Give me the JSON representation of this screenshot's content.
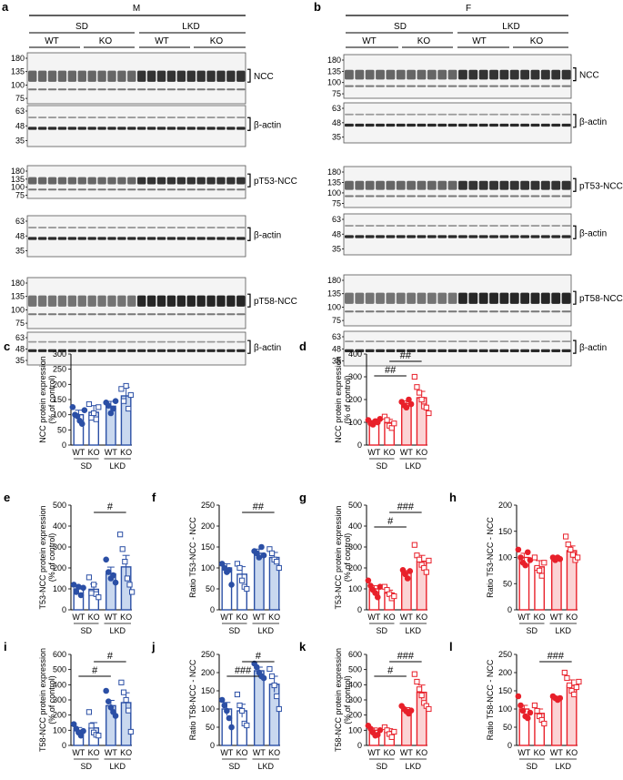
{
  "figure": {
    "panel_labels": [
      "a",
      "b",
      "c",
      "d",
      "e",
      "f",
      "g",
      "h",
      "i",
      "j",
      "k",
      "l"
    ],
    "sex_male": "M",
    "sex_female": "F",
    "diet_sd": "SD",
    "diet_lkd": "LKD",
    "wt": "WT",
    "ko": "KO"
  },
  "colors": {
    "male": "#2b4fa5",
    "male_fill": "#c9d8ef",
    "female": "#e8202a",
    "female_fill": "#fbd3d4"
  },
  "blots": [
    {
      "id": "a-ncc",
      "label": "NCC",
      "markers": [
        "180",
        "135",
        "100",
        "75"
      ],
      "style": "ncc"
    },
    {
      "id": "a-act1",
      "label": "β-actin",
      "markers": [
        "63",
        "48",
        "35"
      ],
      "style": "actin"
    },
    {
      "id": "a-pt53",
      "label": "pT53-NCC",
      "markers": [
        "180",
        "135",
        "100",
        "75"
      ],
      "style": "pt53"
    },
    {
      "id": "a-act2",
      "label": "β-actin",
      "markers": [
        "63",
        "48",
        "35"
      ],
      "style": "actin"
    },
    {
      "id": "a-pt58",
      "label": "pT58-NCC",
      "markers": [
        "180",
        "135",
        "100",
        "75"
      ],
      "style": "pt58"
    },
    {
      "id": "a-act3",
      "label": "β-actin",
      "markers": [
        "63",
        "48",
        "35"
      ],
      "style": "actin"
    },
    {
      "id": "b-ncc",
      "label": "NCC",
      "markers": [
        "180",
        "135",
        "100",
        "75"
      ],
      "style": "ncc"
    },
    {
      "id": "b-act1",
      "label": "β-actin",
      "markers": [
        "63",
        "48",
        "35"
      ],
      "style": "actin"
    },
    {
      "id": "b-pt53",
      "label": "pT53-NCC",
      "markers": [
        "180",
        "135",
        "100",
        "75"
      ],
      "style": "pt53"
    },
    {
      "id": "b-act2",
      "label": "β-actin",
      "markers": [
        "63",
        "48",
        "35"
      ],
      "style": "actin"
    },
    {
      "id": "b-pt58",
      "label": "pT58-NCC",
      "markers": [
        "180",
        "135",
        "100",
        "75"
      ],
      "style": "pt58"
    },
    {
      "id": "b-act3",
      "label": "β-actin",
      "markers": [
        "63",
        "48",
        "35"
      ],
      "style": "actin"
    }
  ],
  "chart_data": [
    {
      "panel": "c",
      "type": "bar",
      "sex": "M",
      "ylabel": "NCC protein expression\n(% of control)",
      "ylim": [
        0,
        300
      ],
      "yticks": [
        0,
        50,
        100,
        150,
        200,
        250,
        300
      ],
      "categories": [
        "WT",
        "KO",
        "WT",
        "KO"
      ],
      "groups": [
        "SD",
        "LKD"
      ],
      "means": [
        100,
        108,
        128,
        162
      ],
      "sem": [
        15,
        22,
        16,
        28
      ],
      "points": [
        [
          125,
          100,
          95,
          80,
          70,
          115
        ],
        [
          135,
          90,
          105,
          85,
          125
        ],
        [
          140,
          130,
          105,
          120,
          145
        ],
        [
          185,
          145,
          195,
          120,
          165
        ]
      ],
      "significance": []
    },
    {
      "panel": "d",
      "type": "bar",
      "sex": "F",
      "ylabel": "NCC protein expression\n(% of control)",
      "ylim": [
        0,
        400
      ],
      "yticks": [
        0,
        100,
        200,
        300,
        400
      ],
      "categories": [
        "WT",
        "KO",
        "WT",
        "KO"
      ],
      "groups": [
        "SD",
        "LKD"
      ],
      "means": [
        100,
        98,
        182,
        208
      ],
      "sem": [
        8,
        15,
        12,
        28
      ],
      "points": [
        [
          110,
          95,
          90,
          105,
          100,
          115
        ],
        [
          125,
          110,
          85,
          75,
          95
        ],
        [
          190,
          175,
          165,
          200,
          180
        ],
        [
          300,
          255,
          230,
          200,
          170,
          165,
          140
        ]
      ],
      "significance": [
        {
          "from": 0,
          "to": 2,
          "label": "##"
        },
        {
          "from": 1,
          "to": 3,
          "label": "##"
        }
      ]
    },
    {
      "panel": "e",
      "type": "bar",
      "sex": "M",
      "ylabel": "T53-NCC protein expression\n(% of control)",
      "ylim": [
        0,
        500
      ],
      "yticks": [
        0,
        100,
        200,
        300,
        400,
        500
      ],
      "categories": [
        "WT",
        "KO",
        "WT",
        "KO"
      ],
      "groups": [
        "SD",
        "LKD"
      ],
      "means": [
        100,
        98,
        172,
        205
      ],
      "sem": [
        14,
        25,
        32,
        55
      ],
      "points": [
        [
          120,
          85,
          110,
          70,
          105
        ],
        [
          155,
          80,
          120,
          75,
          60
        ],
        [
          240,
          180,
          150,
          165,
          130
        ],
        [
          360,
          290,
          230,
          150,
          120,
          85
        ]
      ],
      "significance": [
        {
          "from": 1,
          "to": 3,
          "label": "#"
        }
      ]
    },
    {
      "panel": "f",
      "type": "bar",
      "sex": "M",
      "ylabel": "Ratio T53-NCC - NCC",
      "ylim": [
        0,
        250
      ],
      "yticks": [
        0,
        50,
        100,
        150,
        200,
        250
      ],
      "categories": [
        "WT",
        "KO",
        "WT",
        "KO"
      ],
      "groups": [
        "SD",
        "LKD"
      ],
      "means": [
        100,
        85,
        135,
        125
      ],
      "sem": [
        10,
        18,
        10,
        12
      ],
      "points": [
        [
          110,
          100,
          90,
          95,
          60
        ],
        [
          110,
          100,
          70,
          55,
          50
        ],
        [
          140,
          135,
          125,
          150,
          130
        ],
        [
          145,
          135,
          120,
          115,
          100
        ]
      ],
      "significance": [
        {
          "from": 1,
          "to": 3,
          "label": "##"
        }
      ]
    },
    {
      "panel": "g",
      "type": "bar",
      "sex": "F",
      "ylabel": "T53-NCC protein expression\n(% of control)",
      "ylim": [
        0,
        500
      ],
      "yticks": [
        0,
        100,
        200,
        300,
        400,
        500
      ],
      "categories": [
        "WT",
        "KO",
        "WT",
        "KO"
      ],
      "groups": [
        "SD",
        "LKD"
      ],
      "means": [
        100,
        80,
        175,
        232
      ],
      "sem": [
        15,
        14,
        12,
        28
      ],
      "points": [
        [
          140,
          115,
          95,
          80,
          60,
          110
        ],
        [
          110,
          95,
          75,
          55,
          65
        ],
        [
          190,
          170,
          150,
          185
        ],
        [
          310,
          260,
          240,
          215,
          200,
          180,
          235
        ]
      ],
      "significance": [
        {
          "from": 0,
          "to": 2,
          "label": "#"
        },
        {
          "from": 1,
          "to": 3,
          "label": "###"
        }
      ]
    },
    {
      "panel": "h",
      "type": "bar",
      "sex": "F",
      "ylabel": "Ratio T53-NCC - NCC",
      "ylim": [
        0,
        200
      ],
      "yticks": [
        0,
        50,
        100,
        150,
        200
      ],
      "categories": [
        "WT",
        "KO",
        "WT",
        "KO"
      ],
      "groups": [
        "SD",
        "LKD"
      ],
      "means": [
        100,
        82,
        98,
        113
      ],
      "sem": [
        8,
        12,
        4,
        9
      ],
      "points": [
        [
          115,
          100,
          90,
          85,
          110,
          95
        ],
        [
          100,
          80,
          75,
          65,
          90
        ],
        [
          100,
          95,
          100,
          97
        ],
        [
          140,
          125,
          115,
          105,
          95,
          100
        ]
      ],
      "significance": []
    },
    {
      "panel": "i",
      "type": "bar",
      "sex": "M",
      "ylabel": "T58-NCC protein expression\n(% of control)",
      "ylim": [
        0,
        600
      ],
      "yticks": [
        0,
        100,
        200,
        300,
        400,
        500,
        600
      ],
      "categories": [
        "WT",
        "KO",
        "WT",
        "KO"
      ],
      "groups": [
        "SD",
        "LKD"
      ],
      "means": [
        100,
        115,
        262,
        282
      ],
      "sem": [
        18,
        35,
        35,
        65
      ],
      "points": [
        [
          140,
          110,
          85,
          65,
          95
        ],
        [
          220,
          130,
          85,
          70,
          65
        ],
        [
          360,
          290,
          250,
          220,
          195
        ],
        [
          415,
          350,
          300,
          230,
          90
        ]
      ],
      "significance": [
        {
          "from": 0,
          "to": 2,
          "label": "#"
        },
        {
          "from": 1,
          "to": 3,
          "label": "#"
        }
      ]
    },
    {
      "panel": "j",
      "type": "bar",
      "sex": "M",
      "ylabel": "Ratio T58-NCC - NCC",
      "ylim": [
        0,
        250
      ],
      "yticks": [
        0,
        50,
        100,
        150,
        200,
        250
      ],
      "categories": [
        "WT",
        "KO",
        "WT",
        "KO"
      ],
      "groups": [
        "SD",
        "LKD"
      ],
      "means": [
        100,
        95,
        205,
        168
      ],
      "sem": [
        18,
        18,
        10,
        22
      ],
      "points": [
        [
          125,
          110,
          95,
          75,
          50
        ],
        [
          140,
          110,
          95,
          60,
          55
        ],
        [
          225,
          215,
          200,
          190,
          185
        ],
        [
          210,
          190,
          165,
          135,
          100
        ]
      ],
      "significance": [
        {
          "from": 0,
          "to": 2,
          "label": "###"
        },
        {
          "from": 1,
          "to": 3,
          "label": "#"
        }
      ]
    },
    {
      "panel": "k",
      "type": "bar",
      "sex": "F",
      "ylabel": "T58-NCC protein expression\n(% of control)",
      "ylim": [
        0,
        600
      ],
      "yticks": [
        0,
        100,
        200,
        300,
        400,
        500,
        600
      ],
      "categories": [
        "WT",
        "KO",
        "WT",
        "KO"
      ],
      "groups": [
        "SD",
        "LKD"
      ],
      "means": [
        100,
        92,
        235,
        350
      ],
      "sem": [
        15,
        18,
        14,
        48
      ],
      "points": [
        [
          130,
          110,
          85,
          65,
          70,
          100
        ],
        [
          120,
          100,
          75,
          55,
          90
        ],
        [
          260,
          240,
          225,
          210,
          230
        ],
        [
          470,
          420,
          370,
          330,
          280,
          260,
          240
        ]
      ],
      "significance": [
        {
          "from": 0,
          "to": 2,
          "label": "#"
        },
        {
          "from": 1,
          "to": 3,
          "label": "###"
        }
      ]
    },
    {
      "panel": "l",
      "type": "bar",
      "sex": "F",
      "ylabel": "Ratio T58-NCC - NCC",
      "ylim": [
        0,
        250
      ],
      "yticks": [
        0,
        50,
        100,
        150,
        200,
        250
      ],
      "categories": [
        "WT",
        "KO",
        "WT",
        "KO"
      ],
      "groups": [
        "SD",
        "LKD"
      ],
      "means": [
        100,
        88,
        130,
        165
      ],
      "sem": [
        10,
        12,
        5,
        15
      ],
      "points": [
        [
          135,
          110,
          95,
          80,
          75,
          90
        ],
        [
          110,
          95,
          80,
          70,
          60
        ],
        [
          135,
          130,
          125,
          130
        ],
        [
          200,
          185,
          165,
          150,
          140,
          160,
          175
        ]
      ],
      "significance": [
        {
          "from": 1,
          "to": 3,
          "label": "###"
        }
      ]
    }
  ]
}
